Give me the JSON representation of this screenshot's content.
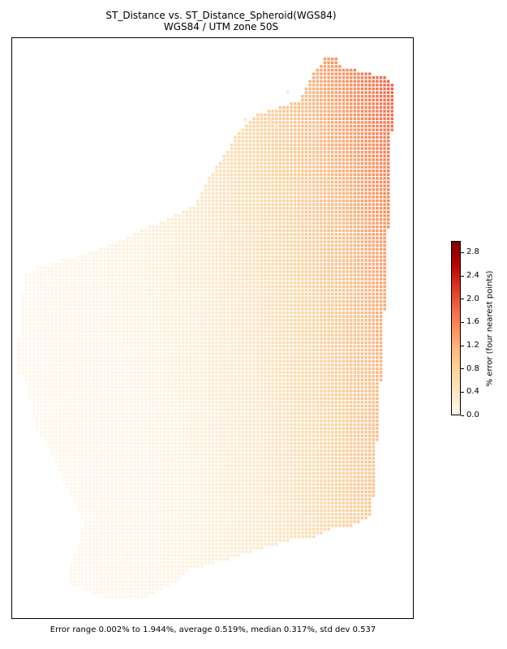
{
  "chart_data": {
    "type": "heatmap",
    "title": "ST_Distance vs. ST_Distance_Spheroid(WGS84)",
    "subtitle": "WGS84 / UTM zone 50S",
    "colorbar": {
      "label": "% error (four nearest points)",
      "min": 0.0,
      "max": 3.0,
      "ticks": [
        "0.0",
        "0.4",
        "0.8",
        "1.2",
        "1.6",
        "2.0",
        "2.4",
        "2.8"
      ],
      "colormap": "OrRd"
    },
    "summary": "Error range 0.002% to 1.944%, average 0.519%, median 0.317%, std dev 0.537",
    "error_min": 0.002,
    "error_max": 1.944,
    "error_mean": 0.519,
    "error_median": 0.317,
    "error_std": 0.537
  }
}
